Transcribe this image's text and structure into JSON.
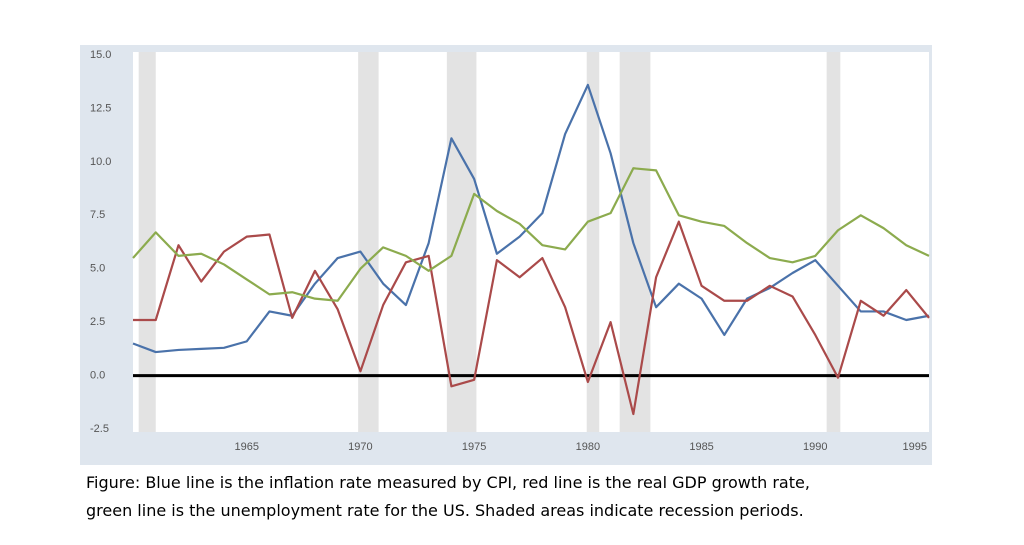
{
  "chart_data": {
    "type": "line",
    "x": [
      1960,
      1961,
      1962,
      1963,
      1964,
      1965,
      1966,
      1967,
      1968,
      1969,
      1970,
      1971,
      1972,
      1973,
      1974,
      1975,
      1976,
      1977,
      1978,
      1979,
      1980,
      1981,
      1982,
      1983,
      1984,
      1985,
      1986,
      1987,
      1988,
      1989,
      1990,
      1991,
      1992,
      1993,
      1994,
      1995
    ],
    "series": [
      {
        "color": "#4a72aa",
        "values": [
          1.5,
          1.1,
          1.2,
          1.25,
          1.3,
          1.6,
          3.0,
          2.8,
          4.3,
          5.5,
          5.8,
          4.3,
          3.3,
          6.2,
          11.1,
          9.2,
          5.7,
          6.5,
          7.6,
          11.3,
          13.6,
          10.4,
          6.2,
          3.2,
          4.3,
          3.6,
          1.9,
          3.6,
          4.1,
          4.8,
          5.4,
          4.2,
          3.0,
          3.0,
          2.6,
          2.8
        ]
      },
      {
        "color": "#aa4a4a",
        "values": [
          2.6,
          2.6,
          6.1,
          4.4,
          5.8,
          6.5,
          6.6,
          2.7,
          4.9,
          3.1,
          0.2,
          3.3,
          5.3,
          5.6,
          -0.5,
          -0.2,
          5.4,
          4.6,
          5.5,
          3.2,
          -0.3,
          2.5,
          -1.8,
          4.6,
          7.2,
          4.2,
          3.5,
          3.5,
          4.2,
          3.7,
          1.9,
          -0.1,
          3.5,
          2.8,
          4.0,
          2.7
        ]
      },
      {
        "color": "#8cab4e",
        "values": [
          5.5,
          6.7,
          5.6,
          5.7,
          5.2,
          4.5,
          3.8,
          3.9,
          3.6,
          3.5,
          5.0,
          6.0,
          5.6,
          4.9,
          5.6,
          8.5,
          7.7,
          7.1,
          6.1,
          5.9,
          7.2,
          7.6,
          9.7,
          9.6,
          7.5,
          7.2,
          7.0,
          6.2,
          5.5,
          5.3,
          5.6,
          6.8,
          7.5,
          6.9,
          6.1,
          5.6
        ]
      }
    ],
    "recessions": [
      [
        1960.25,
        1961.0
      ],
      [
        1969.9,
        1970.8
      ],
      [
        1973.8,
        1975.1
      ],
      [
        1979.95,
        1980.5
      ],
      [
        1981.4,
        1982.75
      ],
      [
        1990.5,
        1991.1
      ]
    ],
    "recession_color": "#e3e3e3",
    "xlim": [
      1960,
      1995
    ],
    "xticks": [
      1965,
      1970,
      1975,
      1980,
      1985,
      1990,
      1995
    ],
    "ylim": [
      -2.5,
      15
    ],
    "yticks": [
      -2.5,
      {
        "value": 0,
        "label": "0.0"
      },
      2.5,
      {
        "value": 5,
        "label": "5.0"
      },
      7.5,
      {
        "value": 10,
        "label": "10.0"
      },
      12.5,
      {
        "value": 15,
        "label": "15.0"
      }
    ],
    "caption": [
      "Figure: Blue line is the inflation rate measured by CPI, red line is the real GDP growth rate,",
      "green line is the unemployment rate for the US. Shaded areas indicate recession periods."
    ]
  }
}
